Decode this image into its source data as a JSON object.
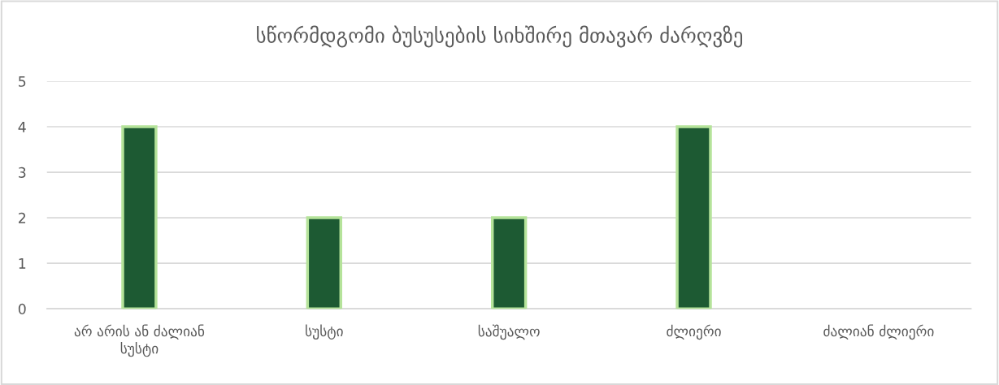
{
  "chart_data": {
    "type": "bar",
    "title": "სწორმდგომი ბუსუსების სიხშირე მთავარ ძარღვზე",
    "categories": [
      "არ არის ან ძალიან სუსტი",
      "სუსტი",
      "საშუალო",
      "ძლიერი",
      "ძალიან ძლიერი"
    ],
    "values": [
      4,
      2,
      2,
      4,
      0
    ],
    "color": "#1d5a33",
    "ylim": [
      0,
      5
    ],
    "yticks": [
      0,
      1,
      2,
      3,
      4,
      5
    ],
    "grid": "y"
  }
}
